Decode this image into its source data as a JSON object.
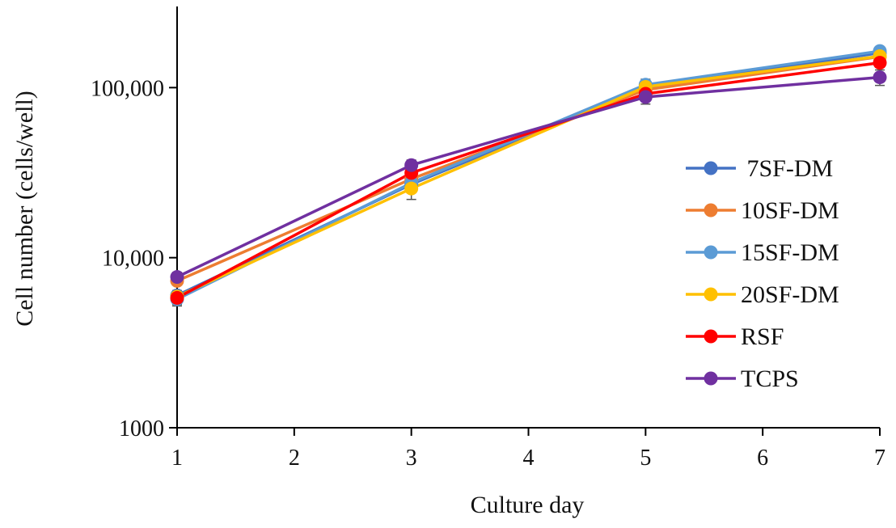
{
  "chart_data": {
    "type": "line",
    "title": "",
    "xlabel": "Culture day",
    "ylabel": "Cell number (cells/well)",
    "yscale": "log",
    "xlim": [
      1,
      7
    ],
    "ylim": [
      1000,
      300000
    ],
    "x_ticks": [
      1,
      2,
      3,
      4,
      5,
      6,
      7
    ],
    "x_tick_labels": [
      "1",
      "2",
      "3",
      "4",
      "5",
      "6",
      "7"
    ],
    "y_ticks": [
      1000,
      10000,
      100000
    ],
    "y_tick_labels": [
      "1000",
      "10,000",
      "100,000"
    ],
    "x": [
      1,
      3,
      5,
      7
    ],
    "legend_position": "right",
    "series": [
      {
        "name": " 7SF-DM",
        "color": "#4472C4",
        "values": [
          6000,
          27000,
          100000,
          160000
        ],
        "errors": [
          400,
          2000,
          6000,
          8000
        ]
      },
      {
        "name": "10SF-DM",
        "color": "#ED7D31",
        "values": [
          7300,
          29000,
          97000,
          152000
        ],
        "errors": [
          400,
          2000,
          6000,
          8000
        ]
      },
      {
        "name": "15SF-DM",
        "color": "#5B9BD5",
        "values": [
          5700,
          27500,
          104000,
          164000
        ],
        "errors": [
          400,
          2000,
          8000,
          8000
        ]
      },
      {
        "name": "20SF-DM",
        "color": "#FFC000",
        "values": [
          5900,
          25500,
          101000,
          153000
        ],
        "errors": [
          400,
          3500,
          8000,
          8000
        ]
      },
      {
        "name": "RSF",
        "color": "#FF0000",
        "values": [
          5800,
          31500,
          92000,
          140000
        ],
        "errors": [
          600,
          2500,
          7000,
          8000
        ]
      },
      {
        "name": "TCPS",
        "color": "#7030A0",
        "values": [
          7700,
          35000,
          88000,
          115000
        ],
        "errors": [
          500,
          2500,
          8000,
          12000
        ]
      }
    ]
  }
}
